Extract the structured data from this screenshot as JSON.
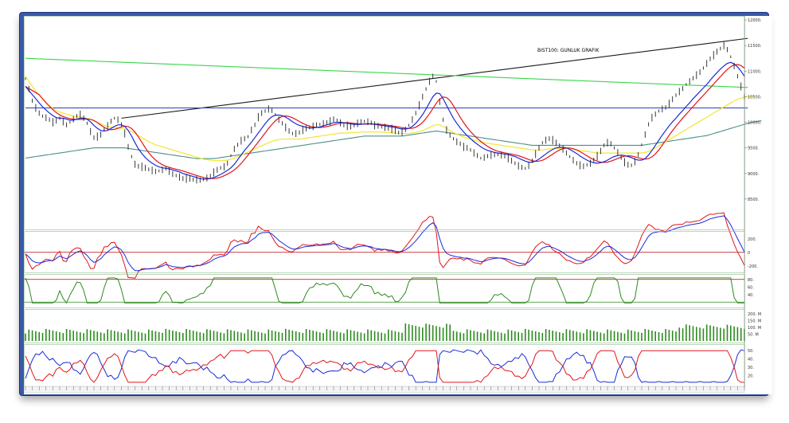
{
  "title": "BIST100: GUNLUK GRAFIK",
  "chart_data": [
    {
      "type": "line",
      "name": "price",
      "title": "BIST100: GUNLUK GRAFIK",
      "ylim": [
        8000,
        12000
      ],
      "yticks": [
        8500,
        9000,
        9500,
        10000,
        10500,
        11000,
        11500,
        12000
      ],
      "ytick_labels": [
        "8500.",
        "9000.",
        "9500.",
        "10000.",
        "10500.",
        "11000.",
        "11500.",
        "12000."
      ],
      "close": [
        10850,
        10650,
        10420,
        10280,
        10180,
        10120,
        10090,
        10050,
        10000,
        10030,
        10080,
        10010,
        9950,
        10000,
        10060,
        10120,
        10150,
        10080,
        9980,
        9820,
        9700,
        9720,
        9760,
        9860,
        9930,
        10020,
        10080,
        10050,
        9960,
        9780,
        9520,
        9330,
        9180,
        9140,
        9130,
        9110,
        9080,
        9060,
        9040,
        9050,
        9070,
        9100,
        9050,
        8990,
        8960,
        8930,
        8900,
        8900,
        8900,
        8880,
        8880,
        8870,
        8880,
        8910,
        8950,
        9020,
        9070,
        9110,
        9130,
        9200,
        9350,
        9480,
        9560,
        9640,
        9680,
        9720,
        9850,
        9950,
        10100,
        10180,
        10220,
        10260,
        10230,
        10150,
        10050,
        9980,
        9900,
        9830,
        9780,
        9780,
        9800,
        9850,
        9880,
        9900,
        9920,
        9950,
        9960,
        9980,
        10000,
        10020,
        10060,
        10040,
        9990,
        9950,
        9930,
        9920,
        9940,
        9980,
        10010,
        10020,
        10010,
        9990,
        9940,
        9930,
        9910,
        9900,
        9880,
        9870,
        9830,
        9800,
        9810,
        9860,
        9940,
        10050,
        10180,
        10330,
        10500,
        10650,
        10800,
        10900,
        10800,
        10400,
        10050,
        9850,
        9750,
        9680,
        9620,
        9580,
        9520,
        9500,
        9460,
        9400,
        9350,
        9300,
        9310,
        9340,
        9360,
        9370,
        9370,
        9360,
        9340,
        9300,
        9250,
        9200,
        9150,
        9120,
        9100,
        9150,
        9250,
        9380,
        9500,
        9600,
        9650,
        9680,
        9650,
        9600,
        9550,
        9480,
        9400,
        9330,
        9260,
        9200,
        9160,
        9140,
        9170,
        9200,
        9260,
        9340,
        9440,
        9550,
        9600,
        9580,
        9500,
        9410,
        9310,
        9220,
        9170,
        9160,
        9230,
        9370,
        9560,
        9760,
        9960,
        10090,
        10160,
        10220,
        10260,
        10290,
        10360,
        10450,
        10530,
        10600,
        10660,
        10740,
        10800,
        10860,
        10920,
        10980,
        11060,
        11150,
        11240,
        11310,
        11380,
        11440,
        11500,
        11420,
        11280,
        11100,
        10900,
        10700,
        10500
      ],
      "ma_short": [
        10700,
        10620,
        10540,
        10460,
        10380,
        10300,
        10240,
        10180,
        10130,
        10090,
        10080,
        10080,
        10060,
        10040,
        10040,
        10060,
        10080,
        10080,
        10060,
        10010,
        9940,
        9880,
        9840,
        9830,
        9840,
        9880,
        9920,
        9950,
        9950,
        9920,
        9840,
        9730,
        9600,
        9480,
        9390,
        9310,
        9250,
        9200,
        9160,
        9130,
        9110,
        9100,
        9090,
        9070,
        9050,
        9030,
        9000,
        8980,
        8960,
        8940,
        8920,
        8900,
        8890,
        8890,
        8900,
        8920,
        8950,
        8980,
        9020,
        9060,
        9110,
        9180,
        9270,
        9360,
        9450,
        9530,
        9610,
        9700,
        9790,
        9880,
        9970,
        10050,
        10110,
        10140,
        10140,
        10130,
        10100,
        10060,
        10010,
        9970,
        9940,
        9920,
        9900,
        9890,
        9890,
        9900,
        9910,
        9930,
        9950,
        9970,
        9990,
        10000,
        10000,
        9990,
        9980,
        9970,
        9960,
        9960,
        9960,
        9970,
        9970,
        9970,
        9960,
        9950,
        9940,
        9930,
        9920,
        9910,
        9900,
        9880,
        9870,
        9870,
        9880,
        9920,
        9980,
        10060,
        10150,
        10260,
        10380,
        10500,
        10570,
        10560,
        10460,
        10330,
        10200,
        10080,
        9980,
        9890,
        9810,
        9740,
        9680,
        9620,
        9570,
        9520,
        9480,
        9450,
        9430,
        9410,
        9400,
        9390,
        9380,
        9370,
        9350,
        9330,
        9300,
        9270,
        9240,
        9220,
        9220,
        9240,
        9280,
        9330,
        9380,
        9430,
        9470,
        9500,
        9510,
        9510,
        9500,
        9470,
        9430,
        9390,
        9340,
        9300,
        9260,
        9230,
        9210,
        9200,
        9210,
        9230,
        9260,
        9300,
        9330,
        9350,
        9360,
        9350,
        9330,
        9310,
        9280,
        9260,
        9260,
        9290,
        9360,
        9450,
        9550,
        9650,
        9750,
        9840,
        9930,
        10010,
        10080,
        10160,
        10230,
        10310,
        10380,
        10460,
        10530,
        10600,
        10670,
        10740,
        10820,
        10900,
        10970,
        11040,
        11100,
        11150,
        11170,
        11140,
        11080,
        11000,
        10900
      ],
      "ma_long": [
        10900,
        10800,
        10700,
        10610,
        10530,
        10450,
        10380,
        10320,
        10270,
        10230,
        10200,
        10180,
        10160,
        10140,
        10120,
        10110,
        10100,
        10090,
        10080,
        10060,
        10030,
        10000,
        9970,
        9940,
        9920,
        9910,
        9900,
        9890,
        9880,
        9870,
        9850,
        9820,
        9780,
        9740,
        9700,
        9660,
        9620,
        9590,
        9560,
        9540,
        9520,
        9500,
        9480,
        9460,
        9440,
        9420,
        9400,
        9380,
        9360,
        9340,
        9320,
        9300,
        9280,
        9270,
        9260,
        9250,
        9250,
        9250,
        9250,
        9260,
        9280,
        9300,
        9330,
        9360,
        9390,
        9420,
        9450,
        9480,
        9510,
        9540,
        9570,
        9600,
        9630,
        9650,
        9660,
        9670,
        9670,
        9670,
        9670,
        9670,
        9670,
        9680,
        9690,
        9700,
        9710,
        9720,
        9730,
        9740,
        9750,
        9760,
        9770,
        9780,
        9790,
        9790,
        9790,
        9800,
        9800,
        9800,
        9810,
        9810,
        9810,
        9810,
        9810,
        9810,
        9810,
        9800,
        9800,
        9800,
        9790,
        9780,
        9780,
        9780,
        9780,
        9790,
        9800,
        9820,
        9840,
        9870,
        9900,
        9930,
        9950,
        9950,
        9920,
        9880,
        9840,
        9800,
        9770,
        9740,
        9710,
        9690,
        9670,
        9650,
        9630,
        9610,
        9600,
        9590,
        9580,
        9570,
        9560,
        9550,
        9540,
        9530,
        9520,
        9510,
        9500,
        9490,
        9480,
        9470,
        9460,
        9460,
        9460,
        9460,
        9470,
        9480,
        9490,
        9490,
        9490,
        9490,
        9490,
        9480,
        9470,
        9460,
        9450,
        9440,
        9430,
        9420,
        9410,
        9400,
        9400,
        9400,
        9400,
        9400,
        9400,
        9400,
        9400,
        9400,
        9400,
        9400,
        9400,
        9400,
        9400,
        9410,
        9430,
        9460,
        9500,
        9540,
        9580,
        9620,
        9660,
        9700,
        9740,
        9780,
        9820,
        9860,
        9900,
        9940,
        9980,
        10020,
        10060,
        10100,
        10140,
        10180,
        10220,
        10260,
        10300,
        10340,
        10380,
        10420,
        10450,
        10470,
        10490,
        10500,
        10510,
        10520
      ],
      "ma_200": [
        9300,
        9310,
        9320,
        9330,
        9340,
        9350,
        9360,
        9370,
        9380,
        9390,
        9400,
        9410,
        9420,
        9430,
        9440,
        9450,
        9460,
        9470,
        9480,
        9490,
        9500,
        9500,
        9500,
        9500,
        9500,
        9500,
        9500,
        9500,
        9500,
        9500,
        9490,
        9480,
        9470,
        9460,
        9450,
        9440,
        9430,
        9420,
        9410,
        9400,
        9390,
        9380,
        9370,
        9360,
        9350,
        9340,
        9330,
        9320,
        9310,
        9300,
        9290,
        9290,
        9290,
        9290,
        9290,
        9290,
        9300,
        9310,
        9320,
        9330,
        9340,
        9350,
        9360,
        9370,
        9380,
        9390,
        9400,
        9410,
        9420,
        9430,
        9440,
        9450,
        9460,
        9470,
        9480,
        9490,
        9500,
        9510,
        9520,
        9530,
        9540,
        9550,
        9560,
        9570,
        9580,
        9590,
        9600,
        9610,
        9620,
        9630,
        9640,
        9650,
        9660,
        9670,
        9680,
        9690,
        9700,
        9710,
        9720,
        9730,
        9730,
        9730,
        9730,
        9730,
        9730,
        9730,
        9730,
        9730,
        9730,
        9730,
        9730,
        9740,
        9750,
        9760,
        9770,
        9780,
        9790,
        9800,
        9810,
        9820,
        9830,
        9820,
        9810,
        9800,
        9790,
        9780,
        9770,
        9760,
        9750,
        9740,
        9730,
        9720,
        9710,
        9700,
        9690,
        9680,
        9670,
        9660,
        9650,
        9640,
        9630,
        9620,
        9610,
        9600,
        9590,
        9580,
        9570,
        9560,
        9550,
        9550,
        9550,
        9550,
        9550,
        9550,
        9550,
        9550,
        9550,
        9550,
        9550,
        9550,
        9550,
        9550,
        9550,
        9550,
        9550,
        9550,
        9550,
        9550,
        9550,
        9550,
        9550,
        9550,
        9550,
        9550,
        9550,
        9550,
        9550,
        9550,
        9550,
        9550,
        9550,
        9560,
        9570,
        9580,
        9590,
        9600,
        9610,
        9620,
        9630,
        9640,
        9650,
        9660,
        9670,
        9680,
        9690,
        9700,
        9710,
        9720,
        9730,
        9740,
        9760,
        9780,
        9800,
        9820,
        9840,
        9860,
        9880,
        9900,
        9920,
        9940,
        9960,
        9980,
        10000,
        10010,
        10020,
        10030
      ],
      "trendlines": [
        {
          "name": "resistance-black",
          "from": [
            28,
            10080
          ],
          "to": [
            211,
            11640
          ]
        },
        {
          "name": "channel-green",
          "from": [
            0,
            11250
          ],
          "to": [
            211,
            10680
          ]
        },
        {
          "name": "support-blue",
          "from": [
            0,
            10280
          ],
          "to": [
            211,
            10280
          ]
        }
      ]
    },
    {
      "type": "line",
      "name": "oscillator-1",
      "ylim": [
        -250,
        280
      ],
      "yticks": [
        200,
        0,
        -200
      ],
      "ytick_labels": [
        "200.",
        "0",
        "-200."
      ],
      "hline": 0
    },
    {
      "type": "line",
      "name": "oscillator-2",
      "ylim": [
        10,
        90
      ],
      "yticks": [
        80,
        60,
        40
      ],
      "ytick_labels": [
        "80.",
        "60.",
        "40."
      ],
      "hlines": [
        80,
        20
      ]
    },
    {
      "type": "bar",
      "name": "volume",
      "yticks": [
        200,
        150,
        100,
        50
      ],
      "ytick_labels": [
        "200. M",
        "150. M",
        "100. M",
        "50. M"
      ]
    },
    {
      "type": "line",
      "name": "dmi",
      "ylim": [
        10,
        55
      ],
      "yticks": [
        50,
        40,
        30,
        20
      ],
      "ytick_labels": [
        "50.",
        "40.",
        "30.",
        "20."
      ]
    }
  ],
  "colors": {
    "price": "#222222",
    "ma_short": "#1a2bd8",
    "ma_mid": "#e0161b",
    "ma_long": "#f5e430",
    "ma_200": "#4e8f8a",
    "trend_green": "#39d64a",
    "trend_blue": "#2a3fbf",
    "trend_black": "#1a1a1a",
    "osc_green": "#2d8a1f",
    "frame": "#3a5aa8"
  }
}
